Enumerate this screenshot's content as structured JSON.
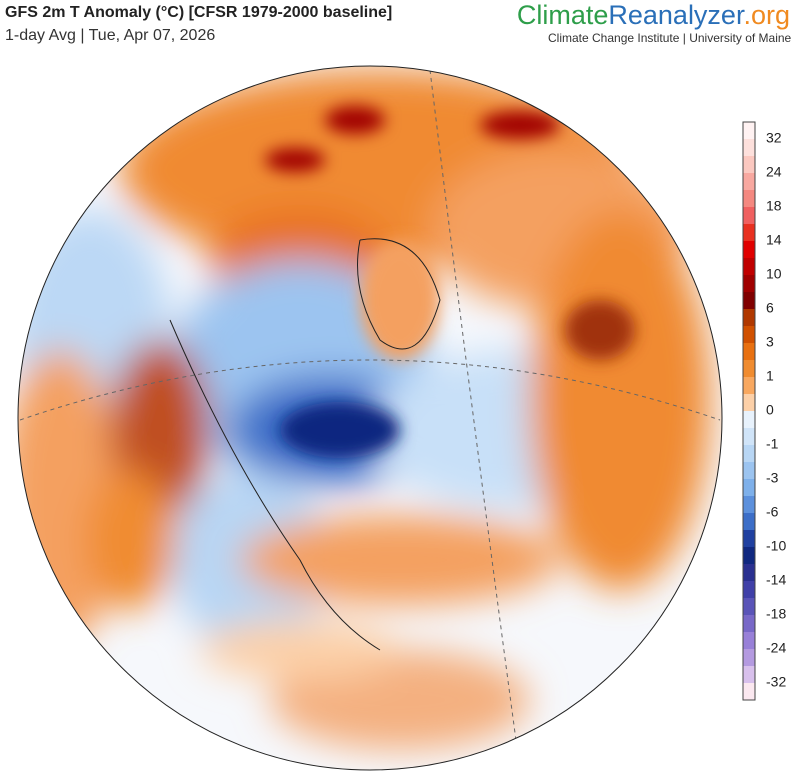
{
  "header": {
    "title": "GFS 2m T Anomaly (°C) [CFSR 1979-2000 baseline]",
    "subtitle": "1-day Avg | Tue, Apr 07, 2026"
  },
  "brand": {
    "parts": [
      "Climate",
      "Reanalyzer",
      ".org"
    ],
    "colors": [
      "#2e9e4a",
      "#2a6fb8",
      "#f08a20"
    ],
    "tagline": "Climate Change Institute | University of Maine"
  },
  "colorbar": {
    "labels": [
      32,
      24,
      18,
      14,
      10,
      6,
      3,
      1,
      0,
      -1,
      -3,
      -6,
      -10,
      -14,
      -18,
      -24,
      -32
    ],
    "colors": [
      "#fff2f2",
      "#fde0dc",
      "#fbc8c0",
      "#f8a8a0",
      "#f48880",
      "#f06060",
      "#e83020",
      "#e00000",
      "#c00000",
      "#a00000",
      "#800000",
      "#b03800",
      "#d05000",
      "#e87010",
      "#f08c30",
      "#f8a860",
      "#fcd0a8",
      "#e8f2fc",
      "#d0e4f8",
      "#b8d6f4",
      "#9cc4f0",
      "#7eb0ea",
      "#5c90dc",
      "#3c6ec8",
      "#2040a0",
      "#102880",
      "#2a3090",
      "#4040a8",
      "#5a54b8",
      "#7868c8",
      "#9880d8",
      "#b49ae0",
      "#d8c0ec",
      "#fbe8f0"
    ]
  }
}
